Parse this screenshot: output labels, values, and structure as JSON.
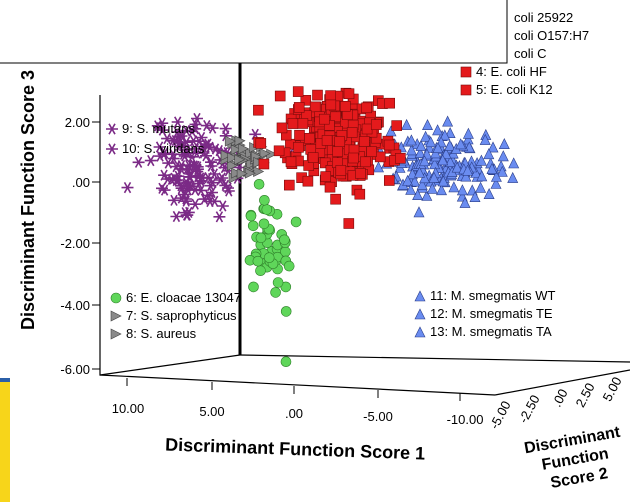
{
  "chart_data": {
    "type": "scatter",
    "dimensions": 3,
    "xlabel": "Discriminant Function Score 1",
    "ylabel": "Discriminant Function Score 3",
    "zlabel": [
      "Discriminant",
      "Function",
      "Score 2"
    ],
    "x_ticks": [
      "10.00",
      "5.00",
      ".00",
      "-5.00",
      "-10.00"
    ],
    "y_ticks": [
      "2.00",
      ".00",
      "-2.00",
      "-4.00",
      "-6.00"
    ],
    "z_ticks": [
      "-5.00",
      "-2.50",
      ".00",
      "2.50",
      "5.00"
    ],
    "xlim": [
      10,
      -10
    ],
    "ylim": [
      -6,
      3
    ],
    "zlim": [
      -5,
      5
    ],
    "colors": {
      "red": "#e41a1c",
      "blue": "#6a8cf0",
      "purple": "#7b2a86",
      "green": "#5fd65a",
      "gray": "#8a8a8a"
    },
    "legend_top": [
      {
        "label": "coli 25922",
        "marker": "square",
        "color": "#e41a1c"
      },
      {
        "label": "coli O157:H7",
        "marker": "square",
        "color": "#e41a1c"
      },
      {
        "label": "coli C",
        "marker": "square",
        "color": "#e41a1c"
      },
      {
        "label": "4: E. coli HF",
        "marker": "square",
        "color": "#e41a1c"
      },
      {
        "label": "5: E. coli K12",
        "marker": "square",
        "color": "#e41a1c"
      }
    ],
    "legend_left": [
      {
        "label": "9: S. mutans",
        "marker": "star",
        "color": "#7b2a86"
      },
      {
        "label": "10: S. viridans",
        "marker": "star",
        "color": "#7b2a86"
      }
    ],
    "legend_bottom_left": [
      {
        "label": "6: E. cloacae 13047",
        "marker": "circle",
        "color": "#5fd65a"
      },
      {
        "label": "7: S. saprophyticus",
        "marker": "triangle-right",
        "color": "#8a8a8a"
      },
      {
        "label": "8: S. aureus",
        "marker": "triangle-right",
        "color": "#8a8a8a"
      }
    ],
    "legend_bottom_right": [
      {
        "label": "11: M. smegmatis WT",
        "marker": "triangle-up",
        "color": "#6a8cf0"
      },
      {
        "label": "12: M. smegmatis TE",
        "marker": "triangle-up",
        "color": "#6a8cf0"
      },
      {
        "label": "13: M. smegmatis TA",
        "marker": "triangle-up",
        "color": "#6a8cf0"
      }
    ],
    "series": [
      {
        "name": "E. coli (4, 5)",
        "marker": "square",
        "color": "#e41a1c",
        "count": 260,
        "cx": -2.5,
        "cy": 1.4,
        "sx": 2.8,
        "sy": 1.3
      },
      {
        "name": "M. smegmatis (11, 12, 13)",
        "marker": "triangle-up",
        "color": "#6a8cf0",
        "count": 170,
        "cx": -9.0,
        "cy": 0.6,
        "sx": 3.0,
        "sy": 1.0
      },
      {
        "name": "S. mutans / S. viridans (9, 10)",
        "marker": "star",
        "color": "#7b2a86",
        "count": 130,
        "cx": 6.0,
        "cy": 0.5,
        "sx": 2.6,
        "sy": 1.7
      },
      {
        "name": "S. saprophyticus / S. aureus (7, 8)",
        "marker": "triangle-right",
        "color": "#8a8a8a",
        "count": 45,
        "cx": 3.0,
        "cy": 0.8,
        "sx": 1.4,
        "sy": 0.7
      },
      {
        "name": "E. cloacae 13047 (6)",
        "marker": "circle",
        "color": "#5fd65a",
        "count": 50,
        "cx": 1.5,
        "cy": -2.2,
        "sx": 1.2,
        "sy": 1.6
      }
    ]
  }
}
